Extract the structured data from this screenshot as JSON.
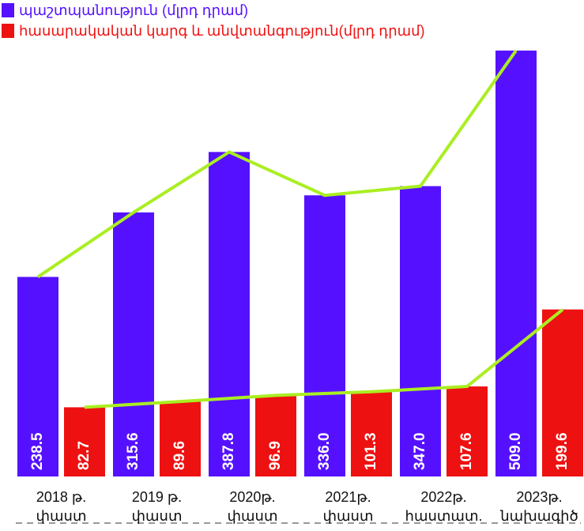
{
  "chart_data": {
    "type": "bar",
    "categories": [
      [
        "2018 թ.",
        "փաստ"
      ],
      [
        "2019 թ.",
        "փաստ"
      ],
      [
        "2020թ.",
        "փաստ"
      ],
      [
        "2021թ.",
        "փաստ"
      ],
      [
        "2022թ.",
        "հաստատ."
      ],
      [
        "2023թ.",
        "նախագիծ"
      ]
    ],
    "series": [
      {
        "name": "պաշտպանություն  (մլրդ դրամ)",
        "color": "#5511ff",
        "values": [
          238.5,
          315.6,
          387.8,
          336.0,
          347.0,
          509.0
        ],
        "value_labels": [
          "238.5",
          "315.6",
          "387.8",
          "336.0",
          "347.0",
          "509.0"
        ]
      },
      {
        "name": "հասարակական կարգ և անվտանգություն(մլրդ դրամ)",
        "color": "#ee1111",
        "values": [
          82.7,
          89.6,
          96.9,
          101.3,
          107.6,
          199.6
        ],
        "value_labels": [
          "82.7",
          "89.6",
          "96.9",
          "101.3",
          "107.6",
          "199.6"
        ]
      }
    ],
    "trend_line_color": "#aaee22",
    "legend": "top-left"
  }
}
